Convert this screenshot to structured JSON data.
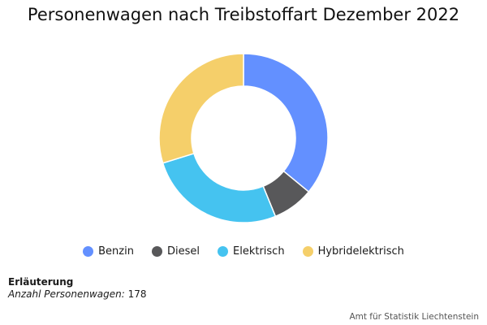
{
  "chart_data": {
    "type": "pie",
    "title": "Personenwagen nach Treibstoffart Dezember 2022",
    "series": [
      {
        "name": "Benzin",
        "value": 64,
        "color": "#6390ff"
      },
      {
        "name": "Diesel",
        "value": 14,
        "color": "#58585a"
      },
      {
        "name": "Elektrisch",
        "value": 47,
        "color": "#45c3f0"
      },
      {
        "name": "Hybridelektrisch",
        "value": 53,
        "color": "#f5cf6a"
      }
    ],
    "legend_placement": "bottom",
    "donut": true
  },
  "note": {
    "heading": "Erläuterung",
    "label": "Anzahl Personenwagen:",
    "value": "178"
  },
  "credit": "Amt für Statistik Liechtenstein"
}
